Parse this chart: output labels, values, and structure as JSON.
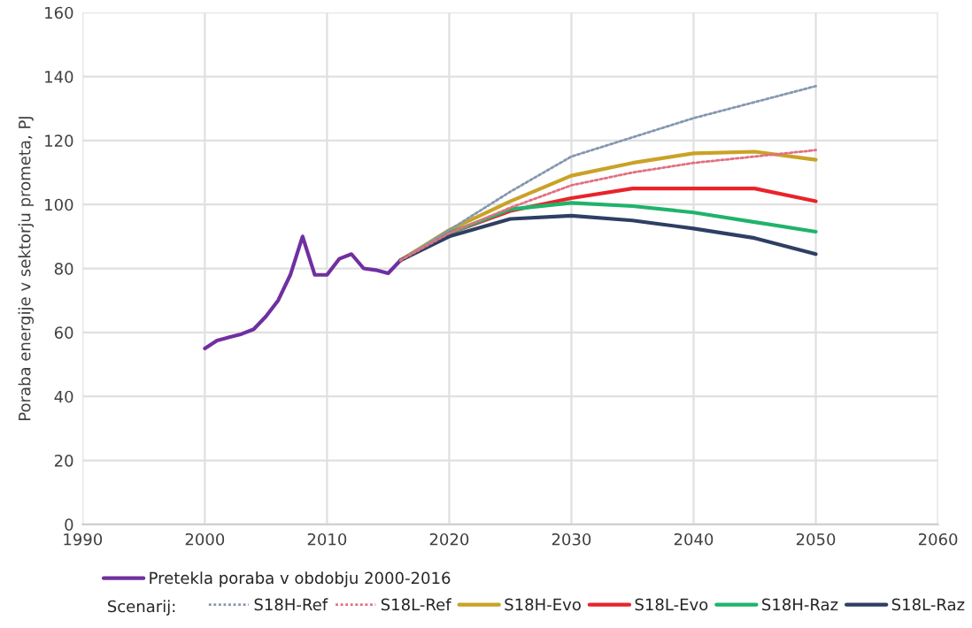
{
  "chart_data": {
    "type": "line",
    "ylabel": "Poraba energije v sektorju prometa, PJ",
    "legend_title": "Scenarij:",
    "xlim": [
      1990,
      2060
    ],
    "xticks": [
      1990,
      2000,
      2010,
      2020,
      2030,
      2040,
      2050,
      2060
    ],
    "ylim": [
      0,
      160
    ],
    "yticks": [
      0,
      20,
      40,
      60,
      80,
      100,
      120,
      140,
      160
    ],
    "grid": true,
    "legend": "bottom",
    "marker": "none",
    "series": [
      {
        "name": "Pretekla poraba v obdobju 2000-2016",
        "color": "#7030a0",
        "line_style": "solid",
        "x": [
          2000,
          2001,
          2002,
          2003,
          2004,
          2005,
          2006,
          2007,
          2008,
          2009,
          2010,
          2011,
          2012,
          2013,
          2014,
          2015,
          2016
        ],
        "values": [
          55,
          57.5,
          58.5,
          59.5,
          61,
          65,
          70,
          78,
          90,
          78,
          78,
          83,
          84.5,
          80,
          79.5,
          78.5,
          82.5
        ]
      },
      {
        "name": "S18H-Ref",
        "color": "#8497b0",
        "line_style": "dotted",
        "x": [
          2016,
          2020,
          2025,
          2030,
          2035,
          2040,
          2045,
          2050
        ],
        "values": [
          82.5,
          92,
          104,
          115,
          121,
          127,
          132,
          137
        ]
      },
      {
        "name": "S18L-Ref",
        "color": "#e07080",
        "line_style": "dotted",
        "x": [
          2016,
          2020,
          2025,
          2030,
          2035,
          2040,
          2045,
          2050
        ],
        "values": [
          82.5,
          91,
          99,
          106,
          110,
          113,
          115,
          117
        ]
      },
      {
        "name": "S18H-Evo",
        "color": "#c9a227",
        "line_style": "solid",
        "x": [
          2016,
          2020,
          2025,
          2030,
          2035,
          2040,
          2045,
          2050
        ],
        "values": [
          82.5,
          92,
          101,
          109,
          113,
          116,
          116.5,
          114
        ]
      },
      {
        "name": "S18L-Evo",
        "color": "#e8242a",
        "line_style": "solid",
        "x": [
          2016,
          2020,
          2025,
          2030,
          2035,
          2040,
          2045,
          2050
        ],
        "values": [
          82.5,
          91,
          98,
          102,
          105,
          105,
          105,
          101
        ]
      },
      {
        "name": "S18H-Raz",
        "color": "#1fb36b",
        "line_style": "solid",
        "x": [
          2016,
          2020,
          2025,
          2030,
          2035,
          2040,
          2045,
          2050
        ],
        "values": [
          82.5,
          91,
          98.5,
          100.5,
          99.5,
          97.5,
          94.5,
          91.5
        ]
      },
      {
        "name": "S18L-Raz",
        "color": "#2e3f63",
        "line_style": "solid",
        "x": [
          2016,
          2020,
          2025,
          2030,
          2035,
          2040,
          2045,
          2050
        ],
        "values": [
          82.5,
          90,
          95.5,
          96.5,
          95,
          92.5,
          89.5,
          84.5
        ]
      }
    ]
  }
}
